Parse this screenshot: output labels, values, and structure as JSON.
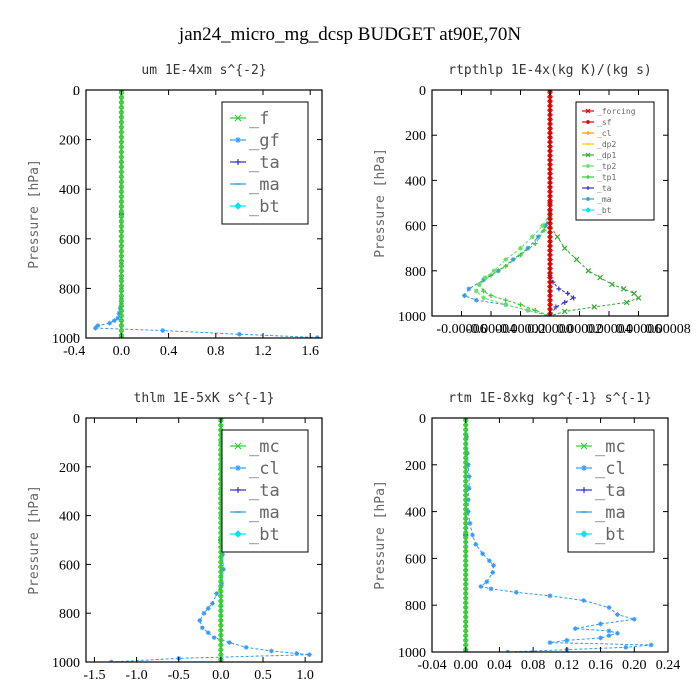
{
  "figure_title": "jan24_micro_mg_dcsp  BUDGET at90E,70N",
  "chart_data": [
    {
      "type": "line",
      "title": "um   1E-4xm s^{-2}",
      "ylabel": "Pressure [hPa]",
      "xlim": [
        -0.3,
        1.7
      ],
      "ylim": [
        1000,
        0
      ],
      "xticks": [
        "-0.4",
        "0.0",
        "0.4",
        "0.8",
        "1.2",
        "1.6"
      ],
      "xtick_values": [
        -0.4,
        0.0,
        0.4,
        0.8,
        1.2,
        1.6
      ],
      "yticks": [
        "0",
        "200",
        "400",
        "600",
        "800",
        "1000"
      ],
      "ytick_values": [
        0,
        200,
        400,
        600,
        800,
        1000
      ],
      "legend_position": "top-right",
      "legend_size": "large",
      "series": [
        {
          "name": "_f",
          "color": "#33cc33",
          "marker": "x",
          "x": [
            0,
            0,
            0,
            0,
            0,
            0,
            0,
            0,
            0,
            0,
            0,
            0,
            0,
            0,
            0,
            0,
            0,
            0,
            0,
            0,
            0,
            0,
            0,
            0,
            0,
            0,
            0,
            0,
            0,
            0,
            0,
            0,
            0,
            0,
            0,
            0,
            0,
            0,
            0,
            0,
            0,
            0,
            0,
            0,
            0,
            0,
            0,
            0,
            0,
            0,
            0
          ],
          "y": [
            0,
            20,
            40,
            60,
            80,
            100,
            120,
            140,
            160,
            180,
            200,
            220,
            240,
            260,
            280,
            300,
            320,
            340,
            360,
            380,
            400,
            420,
            440,
            460,
            480,
            500,
            520,
            540,
            560,
            580,
            600,
            620,
            640,
            660,
            680,
            700,
            720,
            740,
            760,
            780,
            800,
            820,
            840,
            860,
            880,
            900,
            920,
            940,
            960,
            980,
            1000
          ]
        },
        {
          "name": "_gf",
          "color": "#3399ff",
          "marker": "*",
          "x": [
            0,
            0,
            0,
            0,
            0,
            -0.01,
            -0.02,
            -0.03,
            -0.06,
            -0.1,
            -0.2,
            -0.22,
            0.35,
            1.0,
            1.66
          ],
          "y": [
            700,
            760,
            800,
            840,
            860,
            880,
            900,
            920,
            930,
            940,
            950,
            960,
            970,
            985,
            998
          ]
        },
        {
          "name": "_ta",
          "color": "#3333cc",
          "marker": "+",
          "x": [
            0,
            0,
            0
          ],
          "y": [
            0,
            500,
            1000
          ]
        },
        {
          "name": "_ma",
          "color": "#3399dd",
          "marker": "-",
          "x": [
            0,
            0,
            0
          ],
          "y": [
            0,
            500,
            1000
          ]
        },
        {
          "name": "_bt",
          "color": "#00e5ee",
          "marker": "diamond",
          "x": [
            0,
            0,
            0
          ],
          "y": [
            0,
            500,
            1000
          ]
        }
      ]
    },
    {
      "type": "line",
      "title": "rtpthlp   1E-4x(kg K)/(kg s)",
      "ylabel": "Pressure [hPa]",
      "xlim": [
        -8e-05,
        8e-05
      ],
      "ylim": [
        1000,
        0
      ],
      "xticks": [
        "-0.00006",
        "-0.00004",
        "-0.00002",
        "0.00000",
        "0.00002",
        "0.00004",
        "0.00006",
        "0.00008"
      ],
      "xtick_values": [
        -6e-05,
        -4e-05,
        -2e-05,
        0.0,
        2e-05,
        4e-05,
        6e-05,
        8e-05
      ],
      "yticks": [
        "0",
        "200",
        "400",
        "600",
        "800",
        "1000"
      ],
      "ytick_values": [
        0,
        200,
        400,
        600,
        800,
        1000
      ],
      "legend_position": "top-right",
      "legend_size": "small",
      "series": [
        {
          "name": "_forcing",
          "color": "#dd0000",
          "marker": "x",
          "x": [
            0,
            0,
            0,
            0,
            0,
            0,
            0,
            0,
            0,
            0,
            0,
            0,
            0,
            0,
            0,
            0,
            0,
            0,
            0,
            0,
            0,
            0,
            0,
            0,
            0,
            0,
            0,
            0,
            0,
            0,
            0,
            0,
            0,
            0,
            0,
            0,
            0,
            0,
            0,
            0,
            0,
            0,
            0,
            0,
            0,
            0,
            0,
            0,
            0,
            0,
            0
          ],
          "y": [
            0,
            20,
            40,
            60,
            80,
            100,
            120,
            140,
            160,
            180,
            200,
            220,
            240,
            260,
            280,
            300,
            320,
            340,
            360,
            380,
            400,
            420,
            440,
            460,
            480,
            500,
            520,
            540,
            560,
            580,
            600,
            620,
            640,
            660,
            680,
            700,
            720,
            740,
            760,
            780,
            800,
            820,
            840,
            860,
            880,
            900,
            920,
            940,
            960,
            980,
            1000
          ]
        },
        {
          "name": "_sf",
          "color": "#dd0000",
          "marker": "*",
          "x": [
            0,
            0,
            0
          ],
          "y": [
            0,
            500,
            1000
          ]
        },
        {
          "name": "_cl",
          "color": "#ff9900",
          "marker": "+",
          "x": [
            0,
            0,
            0
          ],
          "y": [
            0,
            500,
            1000
          ]
        },
        {
          "name": "_dp2",
          "color": "#ffcc00",
          "marker": "-",
          "x": [
            0,
            0,
            0
          ],
          "y": [
            0,
            500,
            1000
          ]
        },
        {
          "name": "_dp1",
          "color": "#33aa33",
          "marker": "x",
          "x": [
            0,
            0,
            5e-06,
            1e-05,
            1.8e-05,
            2.6e-05,
            3.4e-05,
            4.2e-05,
            5e-05,
            5.7e-05,
            6e-05,
            5.2e-05,
            3e-05,
            1e-05,
            0
          ],
          "y": [
            540,
            600,
            650,
            700,
            750,
            800,
            830,
            860,
            880,
            900,
            920,
            940,
            960,
            980,
            1000
          ]
        },
        {
          "name": "_tp2",
          "color": "#66dd66",
          "marker": "*",
          "x": [
            0,
            -5e-06,
            -1.2e-05,
            -2e-05,
            -3e-05,
            -3.8e-05,
            -4.4e-05,
            -4.8e-05,
            -5e-05,
            -4.5e-05,
            -3e-05,
            -1.5e-05,
            0
          ],
          "y": [
            550,
            600,
            650,
            700,
            750,
            800,
            830,
            860,
            890,
            920,
            950,
            975,
            1000
          ]
        },
        {
          "name": "_tp1",
          "color": "#33cc33",
          "marker": "+",
          "x": [
            0,
            -4e-06,
            -1e-05,
            -2e-05,
            -3e-05,
            -4e-05,
            -4.8e-05,
            -4.5e-05,
            -4e-05,
            -3e-05,
            -2e-05,
            -1e-05,
            0
          ],
          "y": [
            560,
            620,
            680,
            730,
            780,
            820,
            860,
            890,
            910,
            930,
            950,
            975,
            1000
          ]
        },
        {
          "name": "_ta",
          "color": "#3333cc",
          "marker": "+",
          "x": [
            0,
            2e-06,
            6e-06,
            1.2e-05,
            1.6e-05,
            1e-05,
            4e-06,
            0
          ],
          "y": [
            820,
            850,
            880,
            900,
            920,
            940,
            960,
            1000
          ]
        },
        {
          "name": "_ma",
          "color": "#3399dd",
          "marker": "*",
          "x": [
            0,
            -3e-06,
            -8e-06,
            -1.5e-05,
            -2.5e-05,
            -3.5e-05,
            -4.5e-05,
            -5.5e-05,
            -5.8e-05,
            -5e-05,
            -3e-05,
            -1.5e-05,
            0
          ],
          "y": [
            540,
            600,
            650,
            700,
            750,
            800,
            840,
            880,
            910,
            930,
            950,
            975,
            1000
          ]
        },
        {
          "name": "_bt",
          "color": "#00e5ee",
          "marker": "diamond",
          "x": [
            0,
            0,
            0
          ],
          "y": [
            0,
            500,
            1000
          ]
        }
      ]
    },
    {
      "type": "line",
      "title": "thlm   1E-5xK s^{-1}",
      "ylabel": "Pressure [hPa]",
      "xlim": [
        -1.6,
        1.2
      ],
      "ylim": [
        1000,
        0
      ],
      "xticks": [
        "-1.5",
        "-1.0",
        "-0.5",
        "0.0",
        "0.5",
        "1.0"
      ],
      "xtick_values": [
        -1.5,
        -1.0,
        -0.5,
        0.0,
        0.5,
        1.0
      ],
      "yticks": [
        "0",
        "200",
        "400",
        "600",
        "800",
        "1000"
      ],
      "ytick_values": [
        0,
        200,
        400,
        600,
        800,
        1000
      ],
      "legend_position": "top-right",
      "legend_size": "large",
      "series": [
        {
          "name": "_mc",
          "color": "#33cc33",
          "marker": "x",
          "x": [
            0,
            0,
            0,
            0,
            0,
            0,
            0,
            0,
            0,
            0,
            0,
            0,
            0,
            0,
            0,
            0,
            0,
            0,
            0,
            0,
            0,
            0,
            0,
            0,
            0,
            0,
            0,
            0,
            0,
            0,
            0,
            0,
            0,
            0,
            0,
            0,
            0,
            0,
            0,
            0,
            0,
            0,
            0,
            0,
            0,
            0,
            0,
            0,
            0,
            0,
            0
          ],
          "y": [
            0,
            20,
            40,
            60,
            80,
            100,
            120,
            140,
            160,
            180,
            200,
            220,
            240,
            260,
            280,
            300,
            320,
            340,
            360,
            380,
            400,
            420,
            440,
            460,
            480,
            500,
            520,
            540,
            560,
            580,
            600,
            620,
            640,
            660,
            680,
            700,
            720,
            740,
            760,
            780,
            800,
            820,
            840,
            860,
            880,
            900,
            920,
            940,
            960,
            980,
            1000
          ]
        },
        {
          "name": "_cl",
          "color": "#3399ff",
          "marker": "*",
          "x": [
            0,
            0,
            0,
            0,
            0,
            0,
            0,
            0,
            0.01,
            0.02,
            0.03,
            0.01,
            -0.05,
            -0.1,
            -0.15,
            -0.2,
            -0.25,
            -0.22,
            -0.15,
            -0.08,
            0.1,
            0.3,
            0.6,
            0.9,
            1.05,
            -0.5,
            -1.3
          ],
          "y": [
            0,
            50,
            100,
            150,
            200,
            250,
            300,
            400,
            500,
            560,
            620,
            680,
            720,
            760,
            780,
            800,
            830,
            860,
            880,
            900,
            920,
            940,
            955,
            965,
            970,
            985,
            1000
          ]
        },
        {
          "name": "_ta",
          "color": "#3333cc",
          "marker": "+",
          "x": [
            0,
            0,
            0
          ],
          "y": [
            0,
            500,
            1000
          ]
        },
        {
          "name": "_ma",
          "color": "#3399dd",
          "marker": "-",
          "x": [
            0,
            0,
            0
          ],
          "y": [
            0,
            500,
            1000
          ]
        },
        {
          "name": "_bt",
          "color": "#00e5ee",
          "marker": "diamond",
          "x": [
            0,
            0,
            0
          ],
          "y": [
            0,
            500,
            1000
          ]
        }
      ]
    },
    {
      "type": "line",
      "title": "rtm   1E-8xkg kg^{-1} s^{-1}",
      "ylabel": "Pressure [hPa]",
      "xlim": [
        -0.04,
        0.24
      ],
      "ylim": [
        1000,
        0
      ],
      "xticks": [
        "-0.04",
        "0.00",
        "0.04",
        "0.08",
        "0.12",
        "0.16",
        "0.20",
        "0.24"
      ],
      "xtick_values": [
        -0.04,
        0.0,
        0.04,
        0.08,
        0.12,
        0.16,
        0.2,
        0.24
      ],
      "yticks": [
        "0",
        "200",
        "400",
        "600",
        "800",
        "1000"
      ],
      "ytick_values": [
        0,
        200,
        400,
        600,
        800,
        1000
      ],
      "legend_position": "top-right",
      "legend_size": "large",
      "series": [
        {
          "name": "_mc",
          "color": "#33cc33",
          "marker": "x",
          "x": [
            0,
            0,
            0,
            0,
            0,
            0,
            0,
            0,
            0,
            0,
            0,
            0,
            0,
            0,
            0,
            0,
            0,
            0,
            0,
            0,
            0,
            0,
            0,
            0,
            0,
            0,
            0,
            0,
            0,
            0,
            0,
            0,
            0,
            0,
            0,
            0,
            0,
            0,
            0,
            0,
            0,
            0,
            0,
            0,
            0,
            0,
            0,
            0,
            0,
            0,
            0
          ],
          "y": [
            0,
            20,
            40,
            60,
            80,
            100,
            120,
            140,
            160,
            180,
            200,
            220,
            240,
            260,
            280,
            300,
            320,
            340,
            360,
            380,
            400,
            420,
            440,
            460,
            480,
            500,
            520,
            540,
            560,
            580,
            600,
            620,
            640,
            660,
            680,
            700,
            720,
            740,
            760,
            780,
            800,
            820,
            840,
            860,
            880,
            900,
            920,
            940,
            960,
            980,
            1000
          ]
        },
        {
          "name": "_cl",
          "color": "#3399ff",
          "marker": "*",
          "x": [
            0,
            0.001,
            0.002,
            0.003,
            0.004,
            0.004,
            0.003,
            0.003,
            0.005,
            0.008,
            0.012,
            0.02,
            0.028,
            0.033,
            0.032,
            0.025,
            0.018,
            0.03,
            0.06,
            0.1,
            0.14,
            0.17,
            0.18,
            0.2,
            0.16,
            0.13,
            0.17,
            0.18,
            0.17,
            0.16,
            0.12,
            0.1,
            0.22,
            0.19,
            0.12,
            0.05
          ],
          "y": [
            0,
            80,
            150,
            200,
            250,
            300,
            350,
            400,
            450,
            500,
            540,
            580,
            610,
            630,
            660,
            700,
            720,
            730,
            745,
            760,
            780,
            810,
            840,
            860,
            880,
            900,
            910,
            920,
            930,
            940,
            950,
            960,
            970,
            980,
            990,
            1000
          ]
        },
        {
          "name": "_ta",
          "color": "#3333cc",
          "marker": "+",
          "x": [
            0,
            0,
            0
          ],
          "y": [
            0,
            500,
            1000
          ]
        },
        {
          "name": "_ma",
          "color": "#3399dd",
          "marker": "-",
          "x": [
            0,
            0,
            0
          ],
          "y": [
            0,
            500,
            1000
          ]
        },
        {
          "name": "_bt",
          "color": "#00e5ee",
          "marker": "diamond",
          "x": [
            0,
            0,
            0
          ],
          "y": [
            0,
            500,
            1000
          ]
        }
      ]
    }
  ]
}
